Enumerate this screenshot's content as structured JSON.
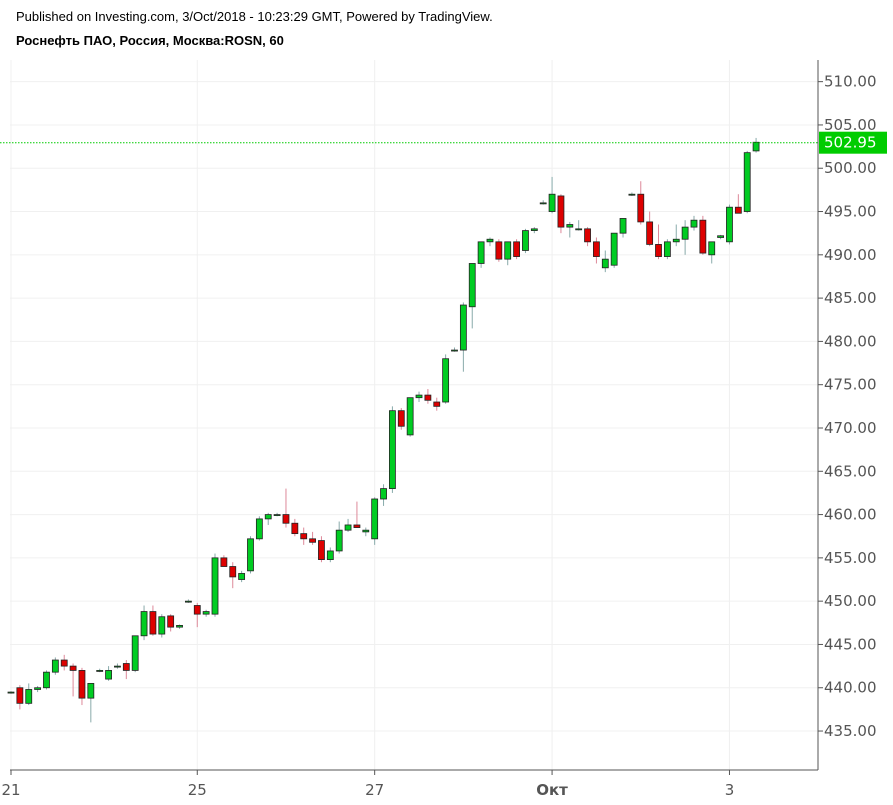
{
  "header": {
    "published": "Published on Investing.com, 3/Oct/2018 - 10:23:29 GMT, Powered by TradingView.",
    "symbol": "Роснефть ПАО, Россия, Москва:ROSN, 60"
  },
  "colors": {
    "up": "#00cc22",
    "down": "#dd0000",
    "outline": "#222222",
    "wick_up": "#88aaaa",
    "wick_down": "#dd8899",
    "last_price": "#00cc00",
    "grid": "#f0f0f0",
    "axis": "#555555"
  },
  "chart_data": {
    "type": "candlestick",
    "timeframe": "60",
    "ylim": [
      430.5,
      512.5
    ],
    "y_ticks": [
      "510.00",
      "505.00",
      "500.00",
      "495.00",
      "490.00",
      "485.00",
      "480.00",
      "475.00",
      "470.00",
      "465.00",
      "460.00",
      "455.00",
      "450.00",
      "445.00",
      "440.00",
      "435.00"
    ],
    "x_ticks": [
      {
        "label": "21",
        "index": 0,
        "bold": false
      },
      {
        "label": "25",
        "index": 21,
        "bold": false
      },
      {
        "label": "27",
        "index": 41,
        "bold": false
      },
      {
        "label": "Окт",
        "index": 61,
        "bold": true
      },
      {
        "label": "3",
        "index": 81,
        "bold": false
      }
    ],
    "last_price": 502.95,
    "last_price_label": "502.95",
    "candles": [
      [
        439.5,
        439.6,
        439.3,
        439.5
      ],
      [
        440.0,
        440.3,
        437.5,
        438.2
      ],
      [
        438.2,
        440.5,
        438.0,
        439.8
      ],
      [
        439.8,
        440.2,
        439.5,
        440.0
      ],
      [
        440.0,
        442.0,
        439.8,
        441.8
      ],
      [
        441.8,
        443.5,
        441.5,
        443.2
      ],
      [
        443.2,
        443.8,
        442.0,
        442.5
      ],
      [
        442.5,
        442.8,
        439.0,
        442.0
      ],
      [
        442.0,
        442.3,
        438.0,
        438.8
      ],
      [
        438.8,
        440.5,
        436.0,
        440.5
      ],
      [
        442.0,
        442.2,
        441.8,
        442.0
      ],
      [
        441.0,
        442.5,
        440.8,
        442.0
      ],
      [
        442.5,
        442.8,
        442.2,
        442.5
      ],
      [
        442.8,
        443.2,
        441.0,
        442.0
      ],
      [
        442.0,
        446.0,
        441.8,
        446.0
      ],
      [
        446.0,
        449.5,
        445.5,
        448.8
      ],
      [
        448.8,
        449.5,
        446.0,
        446.2
      ],
      [
        446.2,
        448.5,
        445.8,
        448.2
      ],
      [
        448.3,
        448.5,
        446.5,
        447.0
      ],
      [
        447.0,
        447.3,
        446.8,
        447.2
      ],
      [
        450.0,
        450.2,
        449.8,
        450.0
      ],
      [
        449.5,
        449.8,
        447.0,
        448.5
      ],
      [
        448.5,
        449.0,
        448.2,
        448.8
      ],
      [
        448.5,
        455.5,
        448.2,
        455.0
      ],
      [
        455.0,
        455.3,
        454.0,
        454.0
      ],
      [
        454.0,
        454.5,
        451.5,
        452.8
      ],
      [
        452.5,
        453.5,
        452.2,
        453.2
      ],
      [
        453.5,
        457.5,
        453.2,
        457.2
      ],
      [
        457.2,
        459.8,
        457.0,
        459.5
      ],
      [
        459.5,
        460.2,
        458.8,
        460.0
      ],
      [
        460.0,
        460.2,
        459.8,
        460.0
      ],
      [
        460.0,
        463.0,
        458.5,
        459.0
      ],
      [
        459.0,
        459.5,
        457.5,
        457.8
      ],
      [
        457.8,
        458.5,
        456.5,
        457.2
      ],
      [
        457.2,
        458.0,
        456.5,
        456.8
      ],
      [
        457.0,
        457.5,
        454.5,
        454.8
      ],
      [
        454.8,
        456.2,
        454.5,
        455.8
      ],
      [
        455.8,
        459.2,
        455.5,
        458.2
      ],
      [
        458.2,
        459.5,
        458.0,
        458.8
      ],
      [
        458.8,
        461.5,
        458.5,
        458.5
      ],
      [
        458.0,
        458.5,
        457.5,
        458.2
      ],
      [
        457.2,
        462.0,
        456.5,
        461.8
      ],
      [
        461.8,
        463.5,
        461.0,
        463.0
      ],
      [
        463.0,
        472.5,
        462.5,
        472.0
      ],
      [
        472.0,
        472.3,
        469.8,
        470.2
      ],
      [
        469.2,
        473.5,
        469.0,
        473.5
      ],
      [
        473.5,
        474.2,
        473.0,
        473.8
      ],
      [
        473.8,
        474.5,
        472.8,
        473.2
      ],
      [
        473.0,
        473.5,
        472.0,
        472.5
      ],
      [
        473.0,
        478.5,
        472.8,
        478.0
      ],
      [
        479.0,
        479.3,
        478.8,
        479.0
      ],
      [
        479.0,
        484.5,
        476.5,
        484.2
      ],
      [
        484.0,
        489.0,
        481.5,
        489.0
      ],
      [
        489.0,
        491.5,
        488.5,
        491.5
      ],
      [
        491.5,
        492.0,
        491.0,
        491.8
      ],
      [
        491.5,
        491.8,
        489.2,
        489.5
      ],
      [
        489.5,
        491.5,
        488.8,
        491.5
      ],
      [
        491.5,
        491.8,
        489.5,
        489.8
      ],
      [
        490.5,
        493.0,
        490.2,
        492.8
      ],
      [
        492.8,
        493.2,
        492.5,
        493.0
      ],
      [
        496.0,
        496.3,
        495.8,
        496.0
      ],
      [
        495.0,
        499.0,
        494.8,
        497.0
      ],
      [
        496.8,
        497.0,
        492.5,
        493.2
      ],
      [
        493.2,
        493.8,
        492.0,
        493.5
      ],
      [
        493.0,
        494.0,
        492.8,
        493.0
      ],
      [
        493.0,
        493.2,
        491.0,
        491.5
      ],
      [
        491.5,
        492.0,
        489.0,
        489.8
      ],
      [
        488.5,
        490.5,
        488.0,
        489.5
      ],
      [
        488.8,
        492.5,
        488.5,
        492.5
      ],
      [
        492.5,
        494.2,
        492.0,
        494.2
      ],
      [
        497.0,
        497.2,
        496.8,
        497.0
      ],
      [
        497.0,
        498.5,
        493.5,
        493.8
      ],
      [
        493.8,
        495.0,
        491.0,
        491.2
      ],
      [
        491.2,
        493.5,
        489.5,
        489.8
      ],
      [
        489.8,
        491.8,
        489.5,
        491.5
      ],
      [
        491.5,
        493.5,
        491.0,
        491.8
      ],
      [
        491.8,
        494.0,
        490.0,
        493.2
      ],
      [
        493.2,
        494.5,
        492.8,
        494.0
      ],
      [
        494.0,
        494.5,
        490.0,
        490.2
      ],
      [
        490.0,
        491.5,
        489.0,
        491.5
      ],
      [
        492.0,
        492.3,
        491.8,
        492.2
      ],
      [
        491.5,
        495.8,
        491.2,
        495.5
      ],
      [
        495.5,
        497.0,
        494.8,
        494.8
      ],
      [
        495.0,
        502.0,
        494.8,
        501.8
      ],
      [
        502.0,
        503.5,
        501.8,
        503.0
      ]
    ]
  }
}
